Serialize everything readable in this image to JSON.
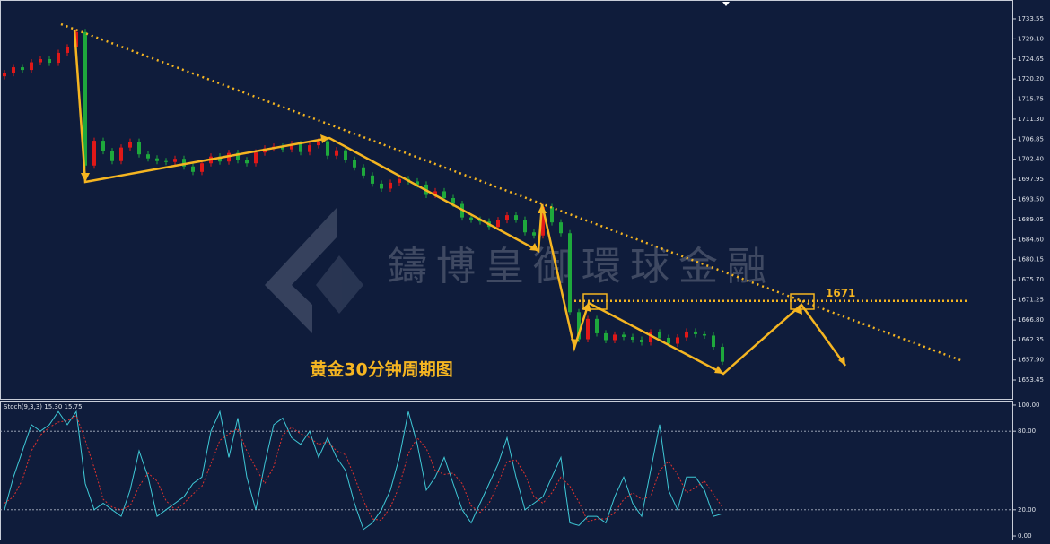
{
  "chart_data": [
    {
      "type": "candlestick",
      "watermark": "鑄博皇御環球金融",
      "annotation": "黄金30分钟周期图",
      "level": 1671,
      "level_color": "#f5b521",
      "up_color": "#e01818",
      "down_color": "#1ea83c",
      "ylim": [
        1649.28,
        1737.72
      ],
      "yticks": [
        1733.55,
        {
          "value": 1729.1,
          "label": "1729.10"
        },
        1724.65,
        {
          "value": 1720.2,
          "label": "1720.20"
        },
        1715.75,
        {
          "value": 1711.3,
          "label": "1711.30"
        },
        1706.85,
        {
          "value": 1702.4,
          "label": "1702.40"
        },
        1697.95,
        {
          "value": 1693.5,
          "label": "1693.50"
        },
        1689.05,
        {
          "value": 1684.6,
          "label": "1684.60"
        },
        1680.15,
        {
          "value": 1675.7,
          "label": "1675.70"
        },
        1671.25,
        {
          "value": 1666.8,
          "label": "1666.80"
        },
        1662.35,
        {
          "value": 1657.9,
          "label": "1657.90"
        },
        1653.45
      ],
      "open": [
        1720.8,
        1721.5,
        1722.8,
        1722.2,
        1723.9,
        1724.6,
        1723.8,
        1726.0,
        1727.2,
        1730.6,
        1701.0,
        1706.5,
        1704.2,
        1702.0,
        1705.0,
        1706.3,
        1703.5,
        1702.6,
        1702.0,
        1701.8,
        1702.5,
        1700.8,
        1699.6,
        1701.5,
        1703.0,
        1701.9,
        1703.8,
        1702.2,
        1701.5,
        1703.9,
        1704.8,
        1705.2,
        1704.6,
        1705.8,
        1704.0,
        1705.5,
        1706.4,
        1703.2,
        1704.4,
        1702.3,
        1700.6,
        1698.8,
        1697.0,
        1695.9,
        1697.2,
        1698.0,
        1697.5,
        1696.8,
        1694.5,
        1695.3,
        1693.8,
        1692.5,
        1689.5,
        1689.0,
        1688.6,
        1687.4,
        1688.9,
        1690.0,
        1689.0,
        1686.2,
        1685.5,
        1691.8,
        1688.4,
        1686.0,
        1668.5,
        1662.5,
        1667.0,
        1663.8,
        1662.3,
        1663.5,
        1663.0,
        1662.4,
        1661.8,
        1664.0,
        1662.8,
        1661.5,
        1662.9,
        1664.2,
        1663.6,
        1663.3,
        1660.8
      ],
      "high": [
        1722.2,
        1723.5,
        1723.5,
        1724.6,
        1725.3,
        1725.3,
        1726.7,
        1727.9,
        1731.3,
        1731.3,
        1707.2,
        1707.2,
        1704.9,
        1705.7,
        1707.0,
        1707.0,
        1704.2,
        1703.3,
        1702.7,
        1703.2,
        1703.2,
        1701.5,
        1702.2,
        1703.7,
        1703.7,
        1704.5,
        1704.5,
        1702.9,
        1704.6,
        1705.5,
        1705.9,
        1705.9,
        1706.5,
        1706.5,
        1706.2,
        1707.1,
        1707.1,
        1705.1,
        1705.1,
        1703.0,
        1701.3,
        1699.5,
        1697.7,
        1697.9,
        1698.7,
        1698.7,
        1698.2,
        1697.5,
        1696.0,
        1696.0,
        1694.5,
        1693.2,
        1690.2,
        1689.7,
        1689.3,
        1689.6,
        1690.7,
        1690.7,
        1689.7,
        1686.9,
        1692.5,
        1692.5,
        1689.1,
        1686.7,
        1669.2,
        1667.7,
        1667.7,
        1664.5,
        1664.2,
        1664.2,
        1663.7,
        1663.1,
        1664.7,
        1664.7,
        1663.5,
        1663.6,
        1664.9,
        1664.9,
        1664.3,
        1664.0,
        1661.5
      ],
      "low": [
        1720.1,
        1720.8,
        1721.5,
        1721.5,
        1723.2,
        1723.1,
        1723.1,
        1725.3,
        1726.5,
        1700.3,
        1700.3,
        1703.5,
        1701.3,
        1701.3,
        1704.3,
        1702.8,
        1701.9,
        1701.3,
        1701.1,
        1701.1,
        1700.1,
        1698.9,
        1698.9,
        1700.8,
        1701.2,
        1701.2,
        1701.5,
        1700.8,
        1700.8,
        1703.2,
        1704.1,
        1703.9,
        1703.9,
        1703.3,
        1703.3,
        1704.8,
        1702.5,
        1702.5,
        1701.6,
        1699.9,
        1698.1,
        1696.3,
        1695.2,
        1695.2,
        1696.5,
        1696.8,
        1696.1,
        1693.8,
        1693.8,
        1693.1,
        1691.8,
        1688.8,
        1688.3,
        1687.9,
        1686.7,
        1686.7,
        1688.2,
        1688.3,
        1685.5,
        1684.8,
        1684.8,
        1687.7,
        1685.3,
        1667.8,
        1661.8,
        1661.8,
        1663.1,
        1661.6,
        1661.6,
        1662.3,
        1661.7,
        1661.1,
        1661.1,
        1662.1,
        1660.8,
        1660.8,
        1662.2,
        1662.9,
        1662.6,
        1660.1,
        1656.8
      ],
      "close": [
        1721.5,
        1722.8,
        1722.2,
        1723.9,
        1724.6,
        1723.8,
        1726.0,
        1727.2,
        1730.6,
        1701.0,
        1706.5,
        1704.2,
        1702.0,
        1705.0,
        1706.3,
        1703.5,
        1702.6,
        1702.0,
        1701.8,
        1702.5,
        1700.8,
        1699.6,
        1701.5,
        1703.0,
        1701.9,
        1703.8,
        1702.2,
        1701.5,
        1703.9,
        1704.8,
        1705.2,
        1704.6,
        1705.8,
        1704.0,
        1705.5,
        1706.4,
        1703.2,
        1704.4,
        1702.3,
        1700.6,
        1698.8,
        1697.0,
        1695.9,
        1697.2,
        1698.0,
        1697.5,
        1696.8,
        1694.5,
        1695.3,
        1693.8,
        1692.5,
        1689.5,
        1689.0,
        1688.6,
        1687.4,
        1688.9,
        1690.0,
        1689.0,
        1686.2,
        1685.5,
        1691.8,
        1688.4,
        1686.0,
        1668.5,
        1662.5,
        1667.0,
        1663.8,
        1662.3,
        1663.5,
        1663.0,
        1662.4,
        1661.8,
        1664.0,
        1662.8,
        1661.5,
        1662.9,
        1664.2,
        1663.6,
        1663.3,
        1660.8,
        1657.5
      ]
    },
    {
      "type": "line",
      "title": "Stoch(9,3,3) 15.30 15.75",
      "ylim": [
        -3.4,
        103.4
      ],
      "yticks": [
        {
          "value": 100,
          "label": "100.00"
        },
        {
          "value": 80,
          "label": "80.00"
        },
        {
          "value": 20,
          "label": "20.00"
        },
        {
          "value": 0,
          "label": "0.00"
        }
      ],
      "dotted_levels": [
        80,
        20
      ],
      "series": [
        {
          "color": "#3fc9d6",
          "style": "solid",
          "values": [
            20,
            45,
            65,
            85,
            80,
            85,
            95,
            85,
            95,
            40,
            20,
            25,
            20,
            15,
            35,
            65,
            45,
            15,
            20,
            25,
            30,
            40,
            45,
            80,
            95,
            60,
            90,
            45,
            20,
            55,
            85,
            90,
            75,
            70,
            80,
            60,
            75,
            60,
            50,
            25,
            5,
            10,
            20,
            35,
            60,
            95,
            70,
            35,
            45,
            60,
            40,
            20,
            10,
            25,
            40,
            55,
            75,
            45,
            20,
            25,
            30,
            45,
            60,
            10,
            8,
            15,
            15,
            10,
            30,
            45,
            25,
            15,
            50,
            85,
            35,
            20,
            45,
            45,
            35,
            15,
            17
          ]
        },
        {
          "color": "#e0322e",
          "style": "dotted",
          "values": [
            25,
            30,
            43,
            65,
            77,
            83,
            87,
            88,
            92,
            73,
            52,
            28,
            22,
            20,
            23,
            38,
            48,
            42,
            27,
            20,
            25,
            32,
            38,
            55,
            73,
            78,
            82,
            65,
            52,
            40,
            53,
            77,
            83,
            78,
            75,
            70,
            72,
            65,
            62,
            45,
            27,
            13,
            12,
            22,
            38,
            63,
            75,
            67,
            50,
            47,
            48,
            40,
            23,
            18,
            25,
            40,
            57,
            58,
            47,
            30,
            25,
            33,
            45,
            38,
            26,
            11,
            13,
            13,
            18,
            28,
            33,
            28,
            30,
            50,
            57,
            47,
            33,
            37,
            42,
            32,
            22
          ]
        }
      ]
    }
  ]
}
